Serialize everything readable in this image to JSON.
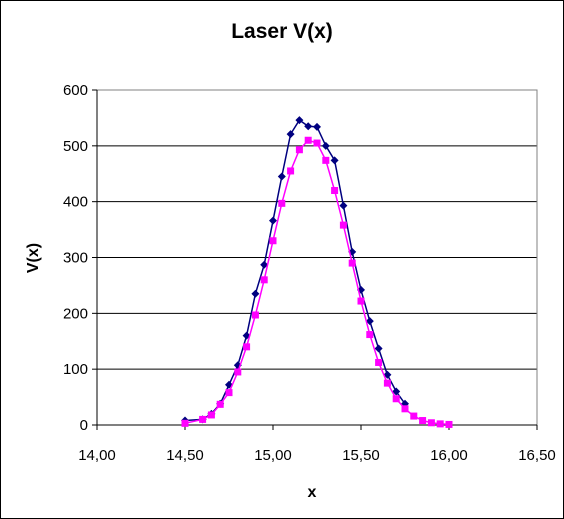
{
  "chart_data": {
    "type": "scatter",
    "title": "Laser V(x)",
    "xlabel": "x",
    "ylabel": "V(x)",
    "xlim": [
      14.0,
      16.5
    ],
    "ylim": [
      0,
      600
    ],
    "x_ticks": [
      "14,00",
      "14,50",
      "15,00",
      "15,50",
      "16,00",
      "16,50"
    ],
    "y_ticks": [
      "0",
      "100",
      "200",
      "300",
      "400",
      "500",
      "600"
    ],
    "grid": "horizontal major gridlines",
    "legend": "none",
    "series": [
      {
        "color": "#000080",
        "marker": "diamond",
        "points": [
          [
            14.5,
            8
          ],
          [
            14.6,
            10
          ],
          [
            14.65,
            20
          ],
          [
            14.7,
            38
          ],
          [
            14.75,
            72
          ],
          [
            14.8,
            107
          ],
          [
            14.85,
            160
          ],
          [
            14.9,
            235
          ],
          [
            14.95,
            287
          ],
          [
            15.0,
            366
          ],
          [
            15.05,
            445
          ],
          [
            15.1,
            521
          ],
          [
            15.15,
            546
          ],
          [
            15.2,
            535
          ],
          [
            15.25,
            534
          ],
          [
            15.3,
            500
          ],
          [
            15.35,
            474
          ],
          [
            15.4,
            393
          ],
          [
            15.45,
            310
          ],
          [
            15.5,
            242
          ],
          [
            15.55,
            186
          ],
          [
            15.6,
            137
          ],
          [
            15.65,
            90
          ],
          [
            15.7,
            60
          ],
          [
            15.75,
            38
          ]
        ]
      },
      {
        "color": "#ff00ff",
        "marker": "square",
        "points": [
          [
            14.5,
            3
          ],
          [
            14.6,
            10
          ],
          [
            14.65,
            18
          ],
          [
            14.7,
            37
          ],
          [
            14.75,
            58
          ],
          [
            14.8,
            95
          ],
          [
            14.85,
            140
          ],
          [
            14.9,
            197
          ],
          [
            14.95,
            260
          ],
          [
            15.0,
            330
          ],
          [
            15.05,
            397
          ],
          [
            15.1,
            455
          ],
          [
            15.15,
            493
          ],
          [
            15.2,
            510
          ],
          [
            15.25,
            505
          ],
          [
            15.3,
            474
          ],
          [
            15.35,
            420
          ],
          [
            15.4,
            358
          ],
          [
            15.45,
            290
          ],
          [
            15.5,
            222
          ],
          [
            15.55,
            162
          ],
          [
            15.6,
            112
          ],
          [
            15.65,
            75
          ],
          [
            15.7,
            47
          ],
          [
            15.75,
            29
          ],
          [
            15.8,
            16
          ],
          [
            15.85,
            8
          ],
          [
            15.9,
            4
          ],
          [
            15.95,
            2
          ],
          [
            16.0,
            1
          ]
        ]
      }
    ]
  }
}
